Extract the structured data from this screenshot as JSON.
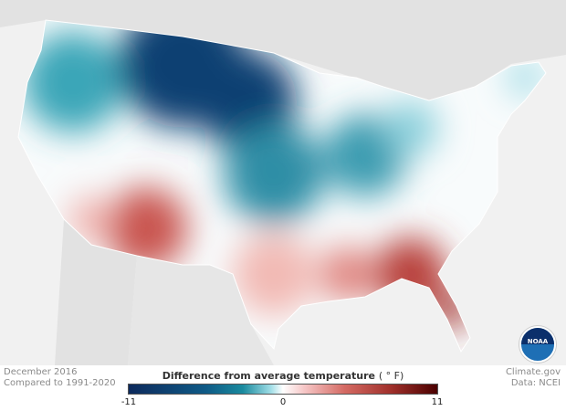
{
  "caption": {
    "date": "December 2016",
    "comparison": "Compared to 1991-2020",
    "source": "Climate.gov",
    "data": "Data: NCEI"
  },
  "legend": {
    "title": "Difference from average temperature",
    "unit": "( ° F)",
    "min": "-11",
    "mid": "0",
    "max": "11",
    "colors": {
      "cold": "#0d2a5c",
      "neutral": "#ffffff",
      "warm": "#4a0000"
    }
  },
  "logo": {
    "text": "NOAA"
  }
}
